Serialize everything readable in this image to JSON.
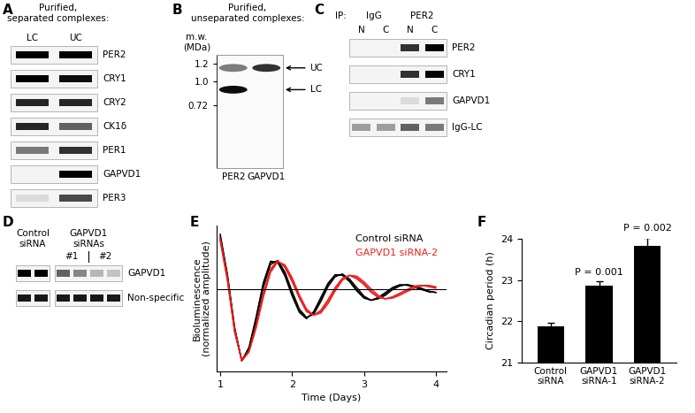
{
  "panels": [
    {
      "letter": "A",
      "title": "Purified,\nseparated complexes:",
      "columns": [
        "LC",
        "UC"
      ],
      "rows": [
        {
          "label": "PER2",
          "bands": [
            1,
            1
          ]
        },
        {
          "label": "CRY1",
          "bands": [
            1,
            0.95
          ]
        },
        {
          "label": "CRY2",
          "bands": [
            0.85,
            0.85
          ]
        },
        {
          "label": "CK1δ",
          "bands": [
            0.85,
            0.6
          ]
        },
        {
          "label": "PER1",
          "bands": [
            0.5,
            0.8
          ]
        },
        {
          "label": "GAPVD1",
          "bands": [
            0,
            1
          ]
        },
        {
          "label": "PER3",
          "bands": [
            0.1,
            0.7
          ]
        }
      ]
    },
    {
      "letter": "B",
      "title": "Purified,\nunseparated complexes:",
      "ylabel": "m.w.\n(MDa)",
      "ylim": [
        0.0,
        1.3
      ],
      "yticks": [
        1.2,
        {
          "value": 1.0,
          "label": "1.0"
        },
        0.72
      ],
      "lanes": [
        "PER2",
        "GAPVD1"
      ],
      "spots": [
        {
          "lane": "PER2",
          "mw": 1.15,
          "strength": 0.5
        },
        {
          "lane": "PER2",
          "mw": 0.9,
          "strength": 0.95
        },
        {
          "lane": "GAPVD1",
          "mw": 1.15,
          "strength": 0.8
        }
      ],
      "markers": [
        {
          "label": "UC",
          "mw": 1.15
        },
        {
          "label": "LC",
          "mw": 0.9
        }
      ]
    },
    {
      "letter": "C",
      "title": "IP:",
      "groups": [
        {
          "label": "IgG",
          "lanes": [
            "N",
            "C"
          ]
        },
        {
          "label": "PER2",
          "lanes": [
            "N",
            "C"
          ]
        }
      ],
      "rows": [
        {
          "label": "PER2",
          "bands": [
            0,
            0,
            0.8,
            1
          ]
        },
        {
          "label": "CRY1",
          "bands": [
            0,
            0,
            0.8,
            1
          ]
        },
        {
          "label": "GAPVD1",
          "bands": [
            0,
            0,
            0.1,
            0.5
          ]
        },
        {
          "label": "IgG-LC",
          "bands": [
            0.35,
            0.35,
            0.6,
            0.5
          ]
        }
      ]
    },
    {
      "letter": "D",
      "groups": [
        {
          "label": "Control\nsiRNA",
          "lanes": 2
        },
        {
          "label": "GAPVD1\nsiRNAs",
          "lanes": 4,
          "sublabels": [
            "#1",
            "#2"
          ]
        }
      ],
      "rows": [
        {
          "label": "GAPVD1",
          "bands": [
            1,
            1,
            0.6,
            0.45,
            0.25,
            0.2
          ]
        },
        {
          "label": "Non-specific",
          "bands": [
            0.9,
            0.9,
            0.9,
            0.9,
            0.9,
            0.9
          ]
        }
      ]
    }
  ],
  "chart_data": [
    {
      "letter": "E",
      "type": "line",
      "xlabel": "Time (Days)",
      "ylabel": "Bioluminescence\n(normalized amplitude)",
      "x": [
        1.0,
        1.1,
        1.2,
        1.3,
        1.4,
        1.5,
        1.6,
        1.7,
        1.8,
        1.9,
        2.0,
        2.1,
        2.2,
        2.3,
        2.4,
        2.5,
        2.6,
        2.7,
        2.8,
        2.9,
        3.0,
        3.1,
        3.2,
        3.3,
        3.4,
        3.5,
        3.6,
        3.7,
        3.8,
        3.9,
        4.0
      ],
      "xlim": [
        0.95,
        4.15
      ],
      "xticks": [
        1,
        2,
        3,
        4
      ],
      "ylim": [
        -1.15,
        0.9
      ],
      "yticks": [],
      "tick_labels": "x",
      "hline": 0,
      "legend": "upper right",
      "series": [
        {
          "name": "Control siRNA",
          "color": "#000000",
          "values": [
            [
              0.75,
              0.2,
              -0.55,
              -1.0,
              -0.83,
              -0.41,
              0.07,
              0.38,
              0.4,
              0.22,
              -0.06,
              -0.3,
              -0.4,
              -0.33,
              -0.14,
              0.07,
              0.2,
              0.21,
              0.13,
              0.0,
              -0.11,
              -0.15,
              -0.12,
              -0.06,
              0.02,
              0.06,
              0.07,
              0.04,
              0.01,
              -0.03,
              -0.04
            ],
            [
              0.78,
              0.22,
              -0.52,
              -1.0,
              -0.85,
              -0.44,
              0.03,
              0.35,
              0.41,
              0.25,
              -0.02,
              -0.27,
              -0.39,
              -0.35,
              -0.17,
              0.04,
              0.18,
              0.22,
              0.15,
              0.03,
              -0.09,
              -0.15,
              -0.13,
              -0.08,
              0.0,
              0.05,
              0.07,
              0.05,
              0.02,
              -0.02,
              -0.04
            ],
            [
              0.72,
              0.17,
              -0.58,
              -1.0,
              -0.81,
              -0.38,
              0.1,
              0.4,
              0.38,
              0.19,
              -0.09,
              -0.32,
              -0.41,
              -0.31,
              -0.11,
              0.09,
              0.21,
              0.2,
              0.11,
              -0.02,
              -0.12,
              -0.15,
              -0.11,
              -0.04,
              0.03,
              0.07,
              0.06,
              0.03,
              0.0,
              -0.03,
              -0.04
            ]
          ]
        },
        {
          "name": "GAPVD1 siRNA-2",
          "color": "#e8201c",
          "values": [
            [
              0.7,
              0.15,
              -0.58,
              -1.0,
              -0.87,
              -0.52,
              -0.08,
              0.27,
              0.4,
              0.33,
              0.14,
              -0.1,
              -0.29,
              -0.36,
              -0.31,
              -0.17,
              0.01,
              0.15,
              0.2,
              0.17,
              0.09,
              -0.02,
              -0.1,
              -0.13,
              -0.11,
              -0.06,
              -0.01,
              0.04,
              0.06,
              0.05,
              0.03
            ],
            [
              0.72,
              0.18,
              -0.55,
              -1.0,
              -0.88,
              -0.54,
              -0.11,
              0.24,
              0.39,
              0.35,
              0.17,
              -0.07,
              -0.27,
              -0.36,
              -0.33,
              -0.2,
              -0.02,
              0.13,
              0.2,
              0.19,
              0.11,
              0.01,
              -0.08,
              -0.13,
              -0.12,
              -0.08,
              -0.03,
              0.02,
              0.05,
              0.06,
              0.04
            ],
            [
              0.68,
              0.12,
              -0.6,
              -1.0,
              -0.86,
              -0.5,
              -0.05,
              0.29,
              0.41,
              0.31,
              0.11,
              -0.12,
              -0.31,
              -0.36,
              -0.29,
              -0.14,
              0.03,
              0.16,
              0.2,
              0.15,
              0.07,
              -0.04,
              -0.11,
              -0.13,
              -0.1,
              -0.05,
              0.0,
              0.05,
              0.06,
              0.04,
              0.02
            ]
          ]
        }
      ]
    },
    {
      "letter": "F",
      "type": "bar",
      "ylabel": "Circadian period (h)",
      "categories": [
        "Control\nsiRNA",
        "GAPVD1\nsiRNA-1",
        "GAPVD1\nsiRNA-2"
      ],
      "values": [
        21.88,
        22.87,
        23.83
      ],
      "errors": [
        0.08,
        0.1,
        0.2
      ],
      "color": "#000000",
      "ylim": [
        21,
        24
      ],
      "yticks": [
        21,
        22,
        23,
        24
      ],
      "annotations": [
        null,
        "P = 0.001",
        "P = 0.002"
      ]
    }
  ]
}
